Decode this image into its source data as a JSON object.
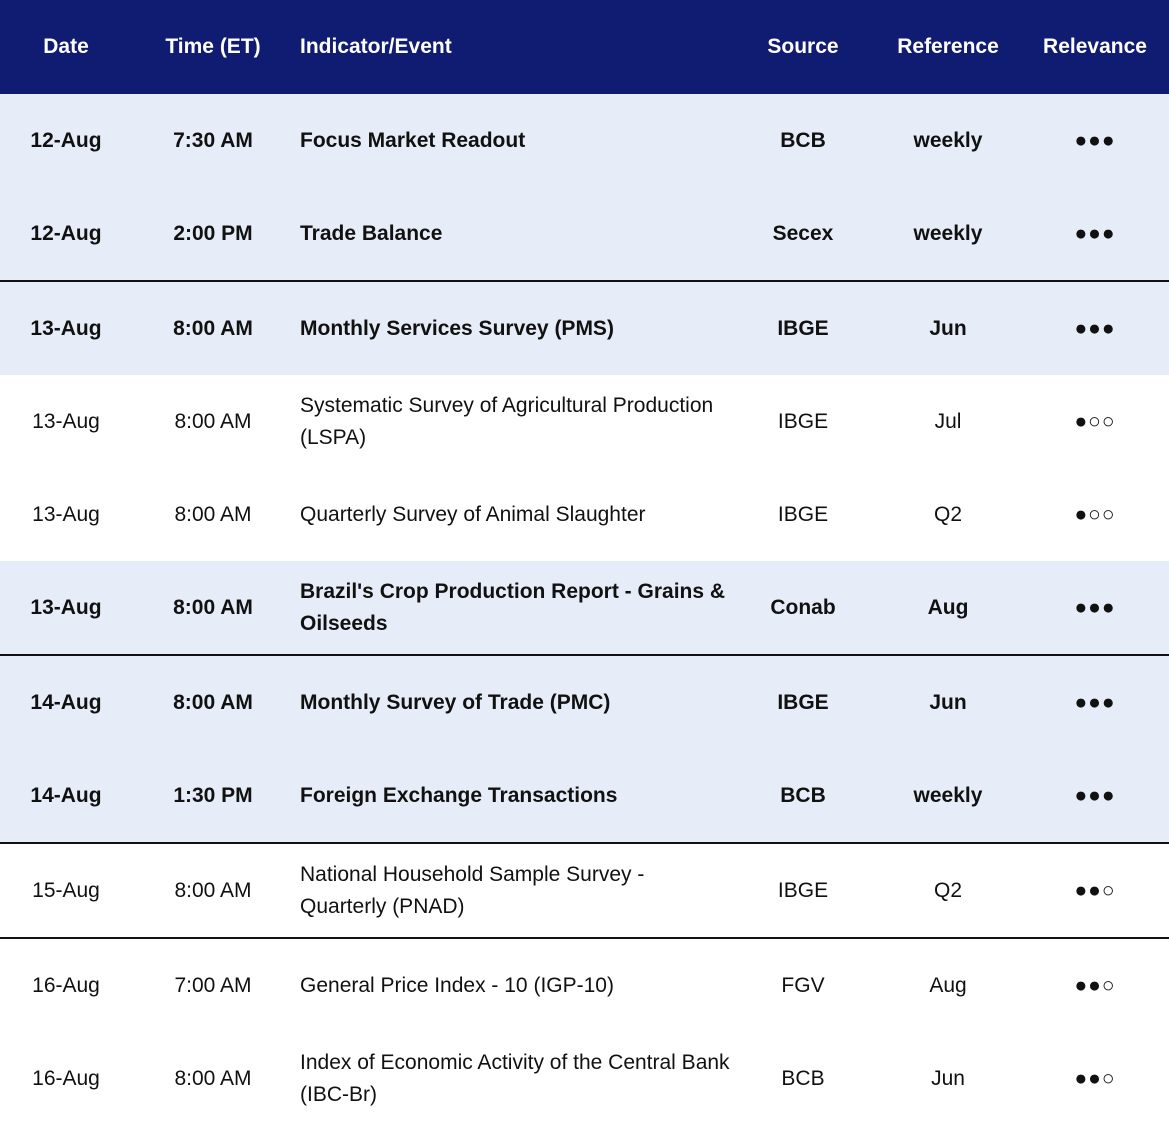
{
  "table": {
    "headers": [
      "Date",
      "Time (ET)",
      "Indicator/Event",
      "Source",
      "Reference",
      "Relevance"
    ],
    "rows": [
      {
        "bold": true,
        "cells": [
          "12-Aug",
          "7:30 AM",
          "Focus Market Readout",
          "BCB",
          "weekly",
          "●●●"
        ]
      },
      {
        "bold": true,
        "cells": [
          "12-Aug",
          "2:00 PM",
          "Trade Balance",
          "Secex",
          "weekly",
          "●●●"
        ]
      },
      {
        "bold": true,
        "cells": [
          "13-Aug",
          "8:00 AM",
          "Monthly Services Survey (PMS)",
          "IBGE",
          "Jun",
          "●●●"
        ]
      },
      {
        "bold": false,
        "cells": [
          "13-Aug",
          "8:00 AM",
          "Systematic Survey of Agricultural Production (LSPA)",
          "IBGE",
          "Jul",
          "●○○"
        ]
      },
      {
        "bold": false,
        "cells": [
          "13-Aug",
          "8:00 AM",
          "Quarterly Survey of Animal Slaughter",
          "IBGE",
          "Q2",
          "●○○"
        ]
      },
      {
        "bold": true,
        "cells": [
          "13-Aug",
          "8:00 AM",
          "Brazil's Crop Production Report - Grains & Oilseeds",
          "Conab",
          "Aug",
          "●●●"
        ]
      },
      {
        "bold": true,
        "cells": [
          "14-Aug",
          "8:00 AM",
          "Monthly Survey of Trade (PMC)",
          "IBGE",
          "Jun",
          "●●●"
        ]
      },
      {
        "bold": true,
        "cells": [
          "14-Aug",
          "1:30 PM",
          "Foreign Exchange Transactions",
          "BCB",
          "weekly",
          "●●●"
        ]
      },
      {
        "bold": false,
        "cells": [
          "15-Aug",
          "8:00 AM",
          "National Household Sample Survey - Quarterly (PNAD)",
          "IBGE",
          "Q2",
          "●●○"
        ]
      },
      {
        "bold": false,
        "cells": [
          "16-Aug",
          "7:00 AM",
          "General Price Index - 10 (IGP-10)",
          "FGV",
          "Aug",
          "●●○"
        ]
      },
      {
        "bold": false,
        "cells": [
          "16-Aug",
          "8:00 AM",
          "Index of Economic Activity of the Central Bank (IBC-Br)",
          "BCB",
          "Jun",
          "●●○"
        ]
      }
    ]
  }
}
